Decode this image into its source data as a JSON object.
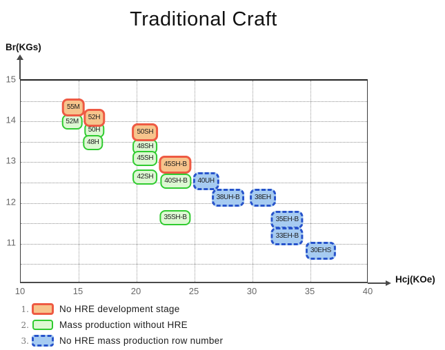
{
  "title": "Traditional Craft",
  "y_axis": {
    "label": "Br(KGs)",
    "ticks": [
      15,
      14,
      13,
      12,
      11
    ],
    "min": 10,
    "max": 15,
    "grid_step": 0.5
  },
  "x_axis": {
    "label": "Hcj(KOe)",
    "ticks": [
      10,
      15,
      20,
      25,
      30,
      35,
      40
    ],
    "min": 10,
    "max": 40,
    "grid_step": 5
  },
  "colors": {
    "dev_border": "#ee5a43",
    "dev_fill": "#f7c48c",
    "mass_border": "#2fcb2f",
    "mass_fill": "#ddf8d3",
    "nohre_border": "#2753cb",
    "nohre_fill": "#a6cbf1",
    "grid": "#9a9a9a",
    "axis": "#4a4a4a",
    "tick_text": "#666666"
  },
  "legend": {
    "items": [
      {
        "num": "1.",
        "style": "dev",
        "label": "No HRE development stage"
      },
      {
        "num": "2.",
        "style": "mass",
        "label": "Mass production without HRE"
      },
      {
        "num": "3.",
        "style": "nohre",
        "label": "No HRE mass production row number"
      }
    ]
  },
  "chart_data": {
    "type": "scatter",
    "title": "Traditional Craft",
    "xlabel": "Hcj(KOe)",
    "ylabel": "Br(KGs)",
    "xlim": [
      10,
      40
    ],
    "ylim": [
      10,
      15
    ],
    "grid": true,
    "legend_position": "bottom-left",
    "series": [
      {
        "name": "No HRE development stage",
        "style": "dev",
        "points": [
          {
            "label": "55M",
            "x": 14.6,
            "y": 14.3
          },
          {
            "label": "52H",
            "x": 16.4,
            "y": 14.05
          },
          {
            "label": "50SH",
            "x": 20.8,
            "y": 13.7
          },
          {
            "label": "45SH-B",
            "x": 23.4,
            "y": 12.9
          }
        ]
      },
      {
        "name": "Mass production without HRE",
        "style": "mass",
        "points": [
          {
            "label": "52M",
            "x": 14.5,
            "y": 13.95
          },
          {
            "label": "50H",
            "x": 16.4,
            "y": 13.75
          },
          {
            "label": "48H",
            "x": 16.3,
            "y": 13.45
          },
          {
            "label": "48SH",
            "x": 20.8,
            "y": 13.35
          },
          {
            "label": "45SH",
            "x": 20.8,
            "y": 13.05
          },
          {
            "label": "42SH",
            "x": 20.8,
            "y": 12.6
          },
          {
            "label": "40SH-B",
            "x": 23.45,
            "y": 12.5
          },
          {
            "label": "35SH-B",
            "x": 23.4,
            "y": 11.6
          }
        ]
      },
      {
        "name": "No HRE mass production row number",
        "style": "nohre",
        "points": [
          {
            "label": "40UH",
            "x": 26.05,
            "y": 12.5
          },
          {
            "label": "38UH-B",
            "x": 27.95,
            "y": 12.1
          },
          {
            "label": "38EH",
            "x": 30.95,
            "y": 12.1
          },
          {
            "label": "35EH-B",
            "x": 33.05,
            "y": 11.55
          },
          {
            "label": "33EH-B",
            "x": 33.05,
            "y": 11.15
          },
          {
            "label": "30EHS",
            "x": 35.95,
            "y": 10.8
          }
        ]
      }
    ]
  }
}
